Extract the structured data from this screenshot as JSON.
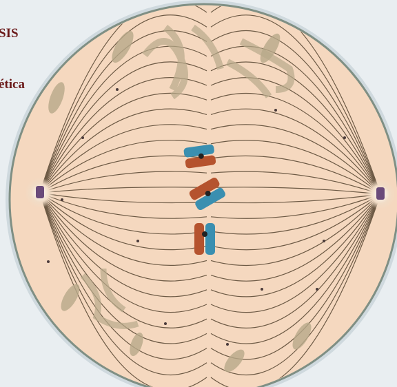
{
  "labels": {
    "top": "SIS",
    "second": "ética"
  }
}
